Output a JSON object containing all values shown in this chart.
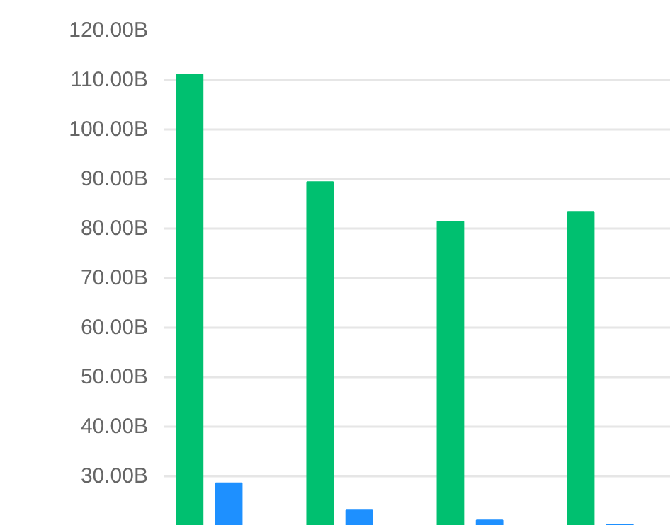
{
  "chart_data": {
    "type": "bar",
    "categories": [
      null,
      null,
      null,
      null
    ],
    "series": [
      {
        "color": "#00c070",
        "values": [
          111.1,
          89.4,
          81.4,
          83.4
        ]
      },
      {
        "color": "#1e90ff",
        "values": [
          28.6,
          23.1,
          21.1,
          20.3
        ]
      }
    ],
    "ylim": [
      20,
      120
    ],
    "yticks": [
      {
        "value": 30,
        "label": "30.00B"
      },
      {
        "value": 40,
        "label": "40.00B"
      },
      {
        "value": 50,
        "label": "50.00B"
      },
      {
        "value": 60,
        "label": "60.00B"
      },
      {
        "value": 70,
        "label": "70.00B"
      },
      {
        "value": 80,
        "label": "80.00B"
      },
      {
        "value": 90,
        "label": "90.00B"
      },
      {
        "value": 100,
        "label": "100.00B"
      },
      {
        "value": 110,
        "label": "110.00B"
      },
      {
        "value": 120,
        "label": "120.00B"
      }
    ],
    "grid": "y",
    "tick_labels": "y"
  }
}
